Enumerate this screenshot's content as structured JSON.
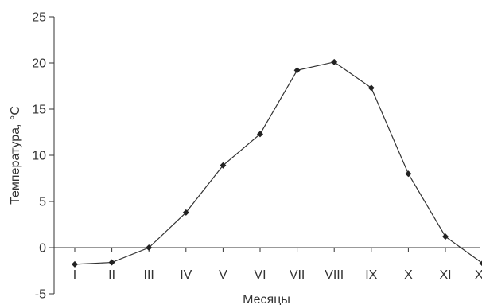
{
  "chart_data": {
    "type": "line",
    "xlabel": "Месяцы",
    "ylabel": "Температура, °С",
    "ylim": [
      -5,
      25
    ],
    "yticks": [
      -5,
      0,
      5,
      10,
      15,
      20,
      25
    ],
    "categories": [
      "I",
      "II",
      "III",
      "IV",
      "V",
      "VI",
      "VII",
      "VIII",
      "IX",
      "X",
      "XI",
      "XII"
    ],
    "series": [
      {
        "values": [
          -1.8,
          -1.6,
          0.0,
          3.8,
          8.9,
          12.3,
          19.2,
          20.1,
          17.3,
          8.0,
          1.2,
          -1.7
        ]
      }
    ],
    "grid": false,
    "marker": "diamond",
    "colors": {
      "line": "#333333",
      "marker": "#222222",
      "axis": "#333333",
      "text": "#333333"
    }
  }
}
